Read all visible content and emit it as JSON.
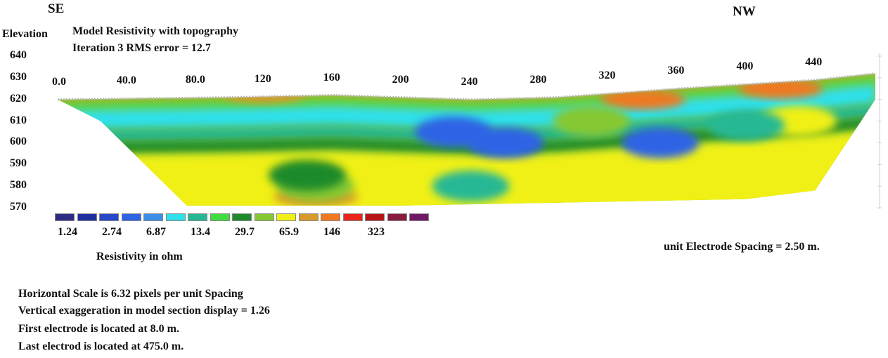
{
  "header": {
    "left_direction": "SE",
    "right_direction": "NW",
    "elevation_label": "Elevation",
    "title_line1": "Model Resistivity with topography",
    "title_line2": "Iteration 3 RMS error = 12.7"
  },
  "chart_data": {
    "type": "heatmap",
    "title": "Model Resistivity with topography",
    "subtitle": "Iteration 3 RMS error = 12.7",
    "ylabel": "Elevation",
    "y_ticks": [
      "640",
      "630",
      "620",
      "610",
      "600",
      "590",
      "580",
      "570"
    ],
    "x_ticks": [
      "0.0",
      "40.0",
      "80.0",
      "120",
      "160",
      "200",
      "240",
      "280",
      "320",
      "360",
      "400",
      "440"
    ],
    "ylim": [
      570,
      640
    ],
    "xlim": [
      0,
      475
    ],
    "surface_profile": [
      {
        "x": 0,
        "elev": 620
      },
      {
        "x": 100,
        "elev": 621
      },
      {
        "x": 160,
        "elev": 622
      },
      {
        "x": 240,
        "elev": 620
      },
      {
        "x": 290,
        "elev": 621
      },
      {
        "x": 360,
        "elev": 625
      },
      {
        "x": 440,
        "elev": 629
      },
      {
        "x": 475,
        "elev": 632
      }
    ],
    "bottom_profile": [
      {
        "x": 25,
        "elev": 610
      },
      {
        "x": 75,
        "elev": 571
      },
      {
        "x": 200,
        "elev": 571
      },
      {
        "x": 400,
        "elev": 574
      },
      {
        "x": 440,
        "elev": 578
      },
      {
        "x": 475,
        "elev": 620
      }
    ],
    "anomalies": [
      {
        "x": 150,
        "elev": 575,
        "level": 11
      },
      {
        "x": 150,
        "elev": 580,
        "level": 9
      },
      {
        "x": 145,
        "elev": 585,
        "level": 8
      },
      {
        "x": 240,
        "elev": 580,
        "level": 6
      },
      {
        "x": 340,
        "elev": 620,
        "level": 12
      },
      {
        "x": 420,
        "elev": 625,
        "level": 12
      },
      {
        "x": 120,
        "elev": 623,
        "level": 11
      },
      {
        "x": 430,
        "elev": 610,
        "level": 10
      },
      {
        "x": 400,
        "elev": 608,
        "level": 6
      },
      {
        "x": 310,
        "elev": 610,
        "level": 9
      },
      {
        "x": 230,
        "elev": 605,
        "level": 3
      },
      {
        "x": 260,
        "elev": 600,
        "level": 3
      },
      {
        "x": 350,
        "elev": 600,
        "level": 3
      }
    ],
    "legend": {
      "colors": [
        "#2d2b86",
        "#1d2f9e",
        "#2547c8",
        "#2e63e6",
        "#3a8ee8",
        "#2ee0ea",
        "#26b894",
        "#3fdc3f",
        "#1e8a2c",
        "#86c832",
        "#f0f018",
        "#d89a2a",
        "#f07820",
        "#e8241c",
        "#b81418",
        "#8a1c40",
        "#701a66"
      ],
      "labels": [
        "1.24",
        "2.74",
        "6.87",
        "13.4",
        "29.7",
        "65.9",
        "146",
        "323"
      ],
      "unit_label": "Resistivity in ohm"
    }
  },
  "notes": {
    "electrode_spacing": "unit Electrode Spacing = 2.50 m.",
    "horizontal_scale": "Horizontal Scale is 6.32 pixels per unit Spacing",
    "vertical_exaggeration": "Vertical exaggeration in model section display = 1.26",
    "first_electrode": "First electrode is located at 8.0 m.",
    "last_electrode": "Last electrod is located at 475.0 m."
  }
}
